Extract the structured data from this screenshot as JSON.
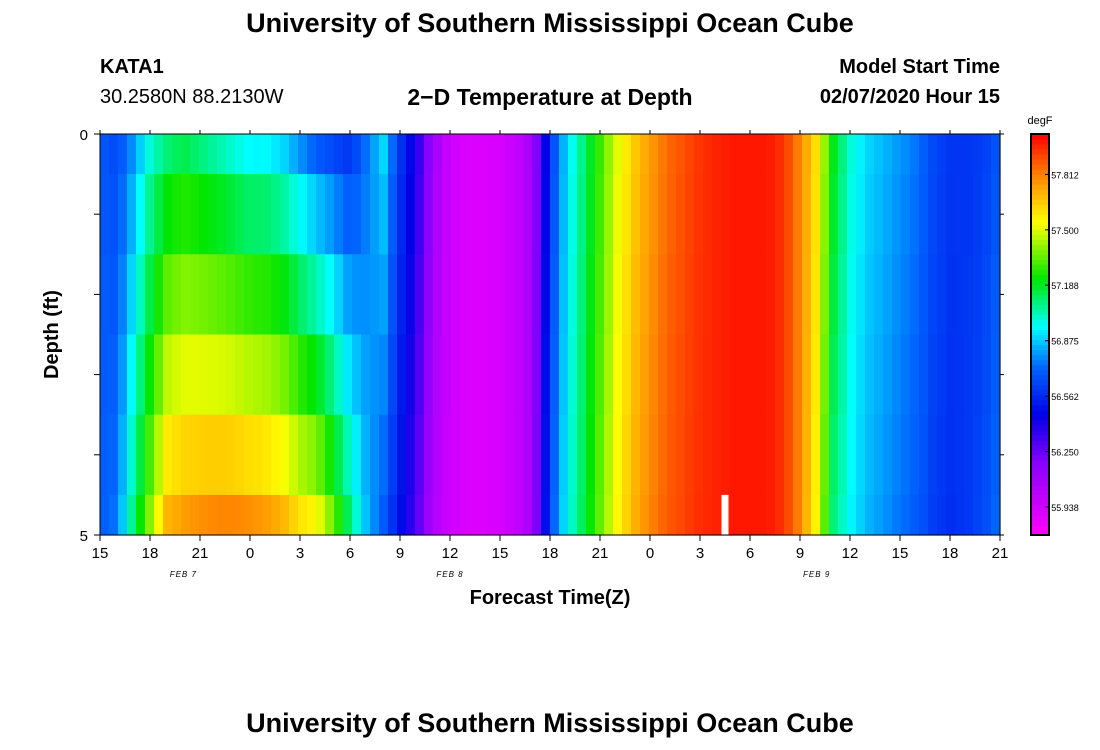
{
  "header": {
    "title": "University of Southern Mississippi Ocean Cube",
    "station_name": "KATA1",
    "station_coords": "30.2580N 88.2130W",
    "chart_title": "2−D Temperature at Depth",
    "model_label": "Model Start Time",
    "model_time": "02/07/2020 Hour 15"
  },
  "footer": {
    "title": "University of Southern Mississippi Ocean Cube"
  },
  "chart_data": {
    "type": "heatmap",
    "title": "2−D Temperature at Depth",
    "xlabel": "Forecast Time(Z)",
    "ylabel": "Depth (ft)",
    "x_tick_labels": [
      "15",
      "18",
      "21",
      "0",
      "3",
      "6",
      "9",
      "12",
      "15",
      "18",
      "21",
      "0",
      "3",
      "6",
      "9",
      "12",
      "15",
      "18",
      "21"
    ],
    "x_range_hours": [
      0,
      54
    ],
    "date_labels": [
      {
        "label": "FEB 7",
        "hour": 5
      },
      {
        "label": "FEB 8",
        "hour": 21
      },
      {
        "label": "FEB 9",
        "hour": 43
      }
    ],
    "y_tick_labels": [
      "0",
      "5"
    ],
    "y_range": [
      0,
      5
    ],
    "depth_levels": [
      0.25,
      0.75,
      1.75,
      2.75,
      3.75,
      4.75
    ],
    "colorbar": {
      "unit": "degF",
      "min": 55.78,
      "max": 58.04,
      "tick_values": [
        55.938,
        56.25,
        56.562,
        56.875,
        57.188,
        57.5,
        57.812
      ],
      "tick_labels": [
        "55.938",
        "56.250",
        "56.562",
        "56.875",
        "57.188",
        "57.500",
        "57.812"
      ]
    },
    "temperature_profile": {
      "hours": [
        0,
        1,
        2,
        3,
        4,
        5,
        6,
        7,
        8,
        9,
        10,
        11,
        12,
        13,
        14,
        15,
        16,
        17,
        18,
        19,
        20,
        21,
        22,
        23,
        24,
        25,
        26,
        27,
        28,
        29,
        30,
        31,
        32,
        33,
        34,
        35,
        36,
        37,
        38,
        39,
        40,
        41,
        42,
        43,
        44,
        45,
        46,
        47,
        48,
        49,
        50,
        51,
        52,
        53,
        54
      ],
      "surface_degF": [
        56.7,
        56.65,
        56.8,
        57.0,
        57.1,
        57.15,
        57.1,
        57.05,
        57.0,
        56.95,
        56.95,
        56.9,
        56.8,
        56.7,
        56.65,
        56.6,
        56.75,
        56.9,
        56.6,
        56.4,
        56.1,
        55.95,
        55.9,
        55.9,
        55.92,
        55.98,
        56.1,
        56.6,
        56.9,
        57.1,
        57.3,
        57.5,
        57.65,
        57.75,
        57.85,
        57.9,
        57.95,
        57.98,
        58.0,
        58.0,
        58.0,
        57.95,
        57.8,
        57.6,
        57.2,
        57.0,
        56.9,
        56.85,
        56.8,
        56.75,
        56.65,
        56.6,
        56.6,
        56.62,
        56.7
      ],
      "bottom_degF": [
        56.7,
        56.75,
        57.1,
        57.4,
        57.7,
        57.75,
        57.78,
        57.8,
        57.8,
        57.78,
        57.75,
        57.7,
        57.6,
        57.55,
        57.35,
        57.1,
        56.85,
        56.7,
        56.5,
        56.3,
        56.05,
        55.95,
        55.9,
        55.9,
        55.92,
        55.98,
        56.1,
        56.65,
        56.95,
        57.15,
        57.35,
        57.55,
        57.7,
        57.8,
        57.88,
        57.92,
        57.96,
        57.98,
        58.0,
        58.0,
        58.0,
        57.95,
        57.8,
        57.55,
        57.1,
        56.95,
        56.85,
        56.8,
        56.75,
        56.7,
        56.62,
        56.58,
        56.6,
        56.65,
        56.75
      ]
    },
    "missing_cell": {
      "hour": 37.5,
      "depth_top": 4.5,
      "depth_bottom": 5
    }
  }
}
